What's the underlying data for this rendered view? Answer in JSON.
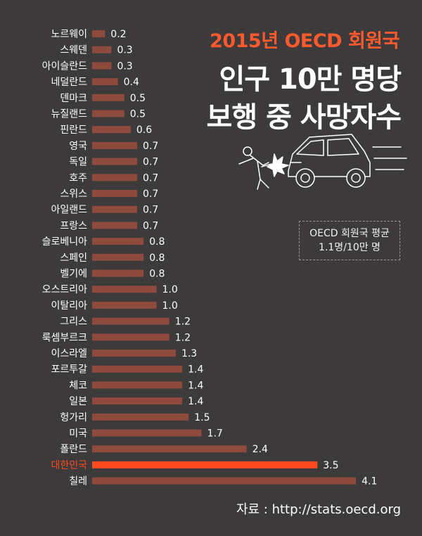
{
  "header": {
    "line1": "2015년 OECD 회원국",
    "line2": "인구 10만 명당",
    "line3": "보행 중 사망자수"
  },
  "average": {
    "line1": "OECD 회원국 평균",
    "line2": "1.1명/10만 명"
  },
  "source": "자료 : http://stats.oecd.org",
  "colors": {
    "background": "#3c3a3a",
    "bar": "#8e4a3c",
    "highlight": "#ff4a20",
    "label": "#ffffff",
    "accent_title": "#ff5a2e"
  },
  "illustration": {
    "icon": "pedestrian-car-collision-icon"
  },
  "chart_data": {
    "type": "bar",
    "orientation": "horizontal",
    "highlight_category": "대한민국",
    "categories": [
      "노르웨이",
      "스웨덴",
      "아이슬란드",
      "네덜란드",
      "덴마크",
      "뉴질랜드",
      "핀란드",
      "영국",
      "독일",
      "호주",
      "스위스",
      "아일랜드",
      "프랑스",
      "슬로베니아",
      "스페인",
      "벨기에",
      "오스트리아",
      "이탈리아",
      "그리스",
      "룩셈부르크",
      "이스라엘",
      "포르투갈",
      "체코",
      "일본",
      "헝가리",
      "미국",
      "폴란드",
      "대한민국",
      "칠레"
    ],
    "values": [
      0.2,
      0.3,
      0.3,
      0.4,
      0.5,
      0.5,
      0.6,
      0.7,
      0.7,
      0.7,
      0.7,
      0.7,
      0.7,
      0.8,
      0.8,
      0.8,
      1.0,
      1.0,
      1.2,
      1.2,
      1.3,
      1.4,
      1.4,
      1.4,
      1.5,
      1.7,
      2.4,
      3.5,
      4.1
    ],
    "value_labels": [
      "0.2",
      "0.3",
      "0.3",
      "0.4",
      "0.5",
      "0.5",
      "0.6",
      "0.7",
      "0.7",
      "0.7",
      "0.7",
      "0.7",
      "0.7",
      "0.8",
      "0.8",
      "0.8",
      "1.0",
      "1.0",
      "1.2",
      "1.2",
      "1.3",
      "1.4",
      "1.4",
      "1.4",
      "1.5",
      "1.7",
      "2.4",
      "3.5",
      "4.1"
    ]
  }
}
